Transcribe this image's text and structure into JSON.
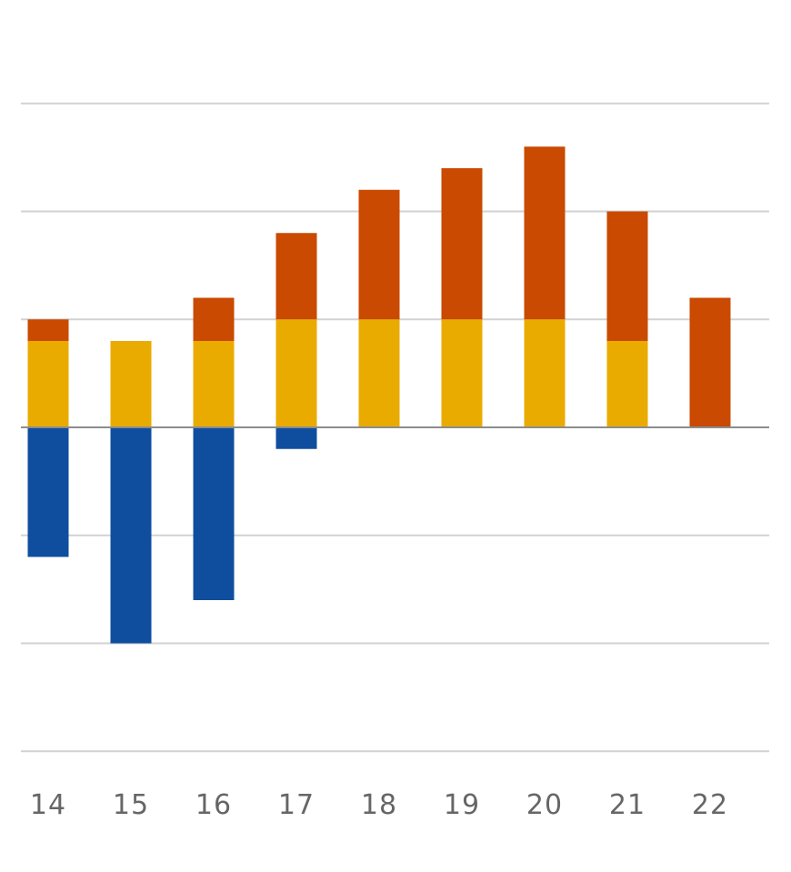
{
  "chart_data": {
    "type": "bar",
    "stacked": true,
    "categories": [
      "14",
      "15",
      "16",
      "17",
      "18",
      "19",
      "20",
      "21",
      "22"
    ],
    "series": [
      {
        "values": [
          -6,
          -10,
          -8,
          -1,
          0,
          0,
          0,
          0,
          0
        ],
        "color": "#0f4e9f"
      },
      {
        "values": [
          4,
          4,
          4,
          5,
          5,
          5,
          5,
          4,
          0
        ],
        "color": "#eaab00"
      },
      {
        "values": [
          1,
          0,
          2,
          4,
          6,
          7,
          8,
          6,
          6
        ],
        "color": "#c94a00"
      }
    ],
    "ylim": [
      -15,
      15
    ],
    "grid": true,
    "title": "",
    "xlabel": "",
    "ylabel": "",
    "colors": {
      "grid": "#d2d2d2",
      "baseline": "#8c8c8c",
      "tick_text": "#666666"
    }
  }
}
